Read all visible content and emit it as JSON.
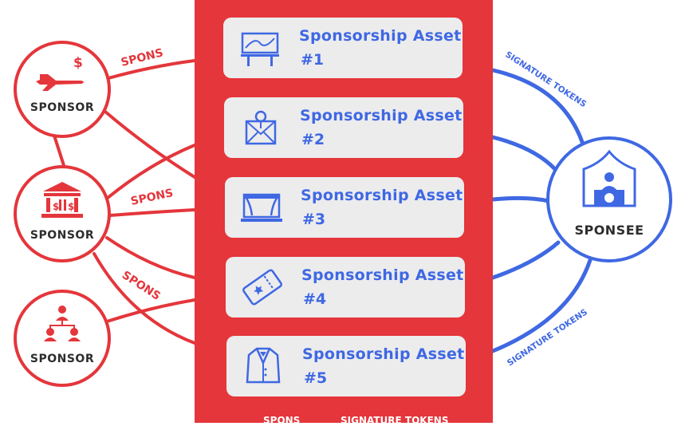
{
  "assets": [
    {
      "title": "Sponsorship Asset",
      "number": "#1",
      "icon": "billboard-icon"
    },
    {
      "title": "Sponsorship Asset",
      "number": "#2",
      "icon": "envelope-icon"
    },
    {
      "title": "Sponsorship Asset",
      "number": "#3",
      "icon": "stage-icon"
    },
    {
      "title": "Sponsorship Asset",
      "number": "#4",
      "icon": "ticket-icon"
    },
    {
      "title": "Sponsorship Asset",
      "number": "#5",
      "icon": "suit-jacket-icon"
    }
  ],
  "sponsors": [
    {
      "label": "SPONSOR",
      "icon": "airplane-money-icon"
    },
    {
      "label": "SPONSOR",
      "icon": "bank-icon"
    },
    {
      "label": "SPONSOR",
      "icon": "org-chart-icon"
    }
  ],
  "sponsee": {
    "label": "SPONSEE",
    "icon": "booth-person-icon"
  },
  "edge_labels": {
    "spons_1": "SPONS",
    "spons_2": "SPONS",
    "spons_3": "SPONS",
    "tokens_top": "SIGNATURE TOKENS",
    "tokens_bottom": "SIGNATURE TOKENS"
  },
  "footer": {
    "left": "SPONS",
    "right": "SIGNATURE TOKENS",
    "arrow_icon": "left-arrow-icon"
  },
  "colors": {
    "red": "#e4363b",
    "blue": "#3f68e3",
    "card": "#ececed",
    "text": "#2d2d2d"
  }
}
